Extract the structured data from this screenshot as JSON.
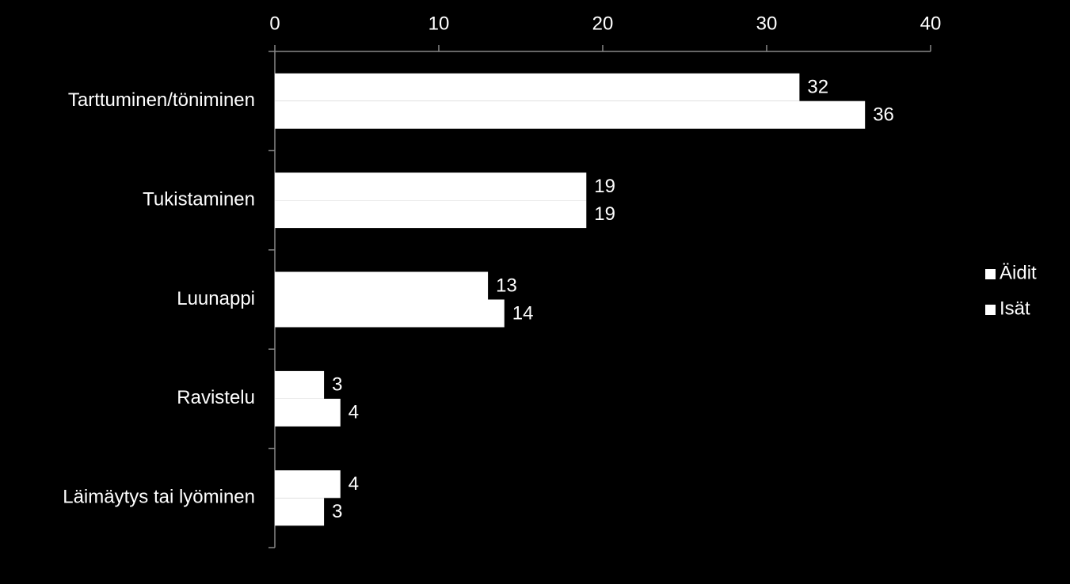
{
  "chart_data": {
    "type": "hbar",
    "categories": [
      "Tarttuminen/töniminen",
      "Tukistaminen",
      "Luunappi",
      "Ravistelu",
      "Läimäytys tai lyöminen"
    ],
    "series": [
      {
        "name": "Äidit",
        "color": "#ffffff",
        "values": [
          32,
          19,
          13,
          3,
          4
        ]
      },
      {
        "name": "Isät",
        "color": "#ffffff",
        "values": [
          36,
          19,
          14,
          4,
          3
        ]
      }
    ],
    "xlim": [
      0,
      40
    ],
    "xticks": [
      0,
      10,
      20,
      30,
      40
    ],
    "legend": "right"
  }
}
